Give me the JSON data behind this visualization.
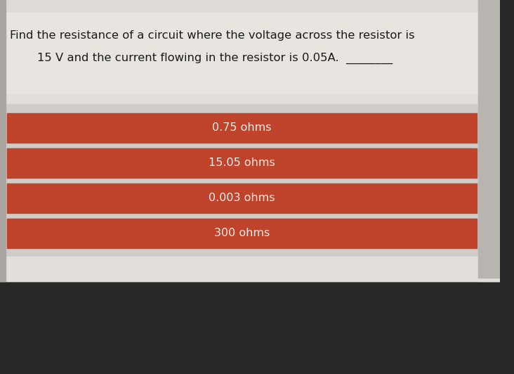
{
  "question_line1": "Find the resistance of a circuit where the voltage across the resistor is",
  "question_line2": "15 V and the current flowing in the resistor is 0.05A.",
  "options": [
    "0.75 ohms",
    "15.05 ohms",
    "0.003 ohms",
    "300 ohms"
  ],
  "screen_top_bg": "#dbd7d2",
  "screen_mid_bg": "#e2deda",
  "question_bg": "#e6e2de",
  "option_bar_color": "#c0432b",
  "option_area_bg": "#c8c4bf",
  "option_text_color": "#f0ebe6",
  "question_text_color": "#1a1a1a",
  "keyboard_color": "#282828",
  "separator_color": "#d0ccc8",
  "right_edge_color": "#b8b4b0",
  "underline": "________"
}
